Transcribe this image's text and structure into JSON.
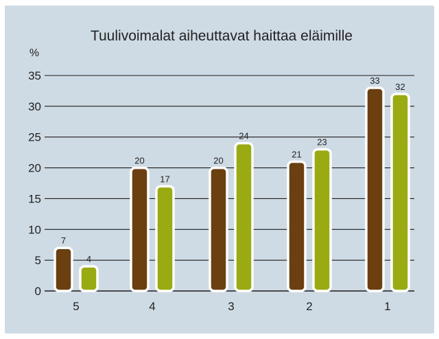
{
  "colors": {
    "background": "#cfdbe4",
    "grid": "#1b1b1b",
    "series_1": "#6b3f10",
    "series_2": "#9aaa12",
    "bar_outline": "#ffffff"
  },
  "chart_data": {
    "type": "bar",
    "title": "Tuulivoimalat aiheuttavat haittaa eläimille",
    "ylabel": "%",
    "xlabel": "",
    "categories": [
      "5",
      "4",
      "3",
      "2",
      "1"
    ],
    "series": [
      {
        "values": [
          7,
          20,
          20,
          21,
          33
        ]
      },
      {
        "values": [
          4,
          17,
          24,
          23,
          32
        ]
      }
    ],
    "ylim": [
      0,
      35
    ],
    "yticks": [
      "0",
      "5",
      "10",
      "15",
      "20",
      "25",
      "30",
      "35"
    ],
    "grid": true,
    "legend": "none"
  }
}
